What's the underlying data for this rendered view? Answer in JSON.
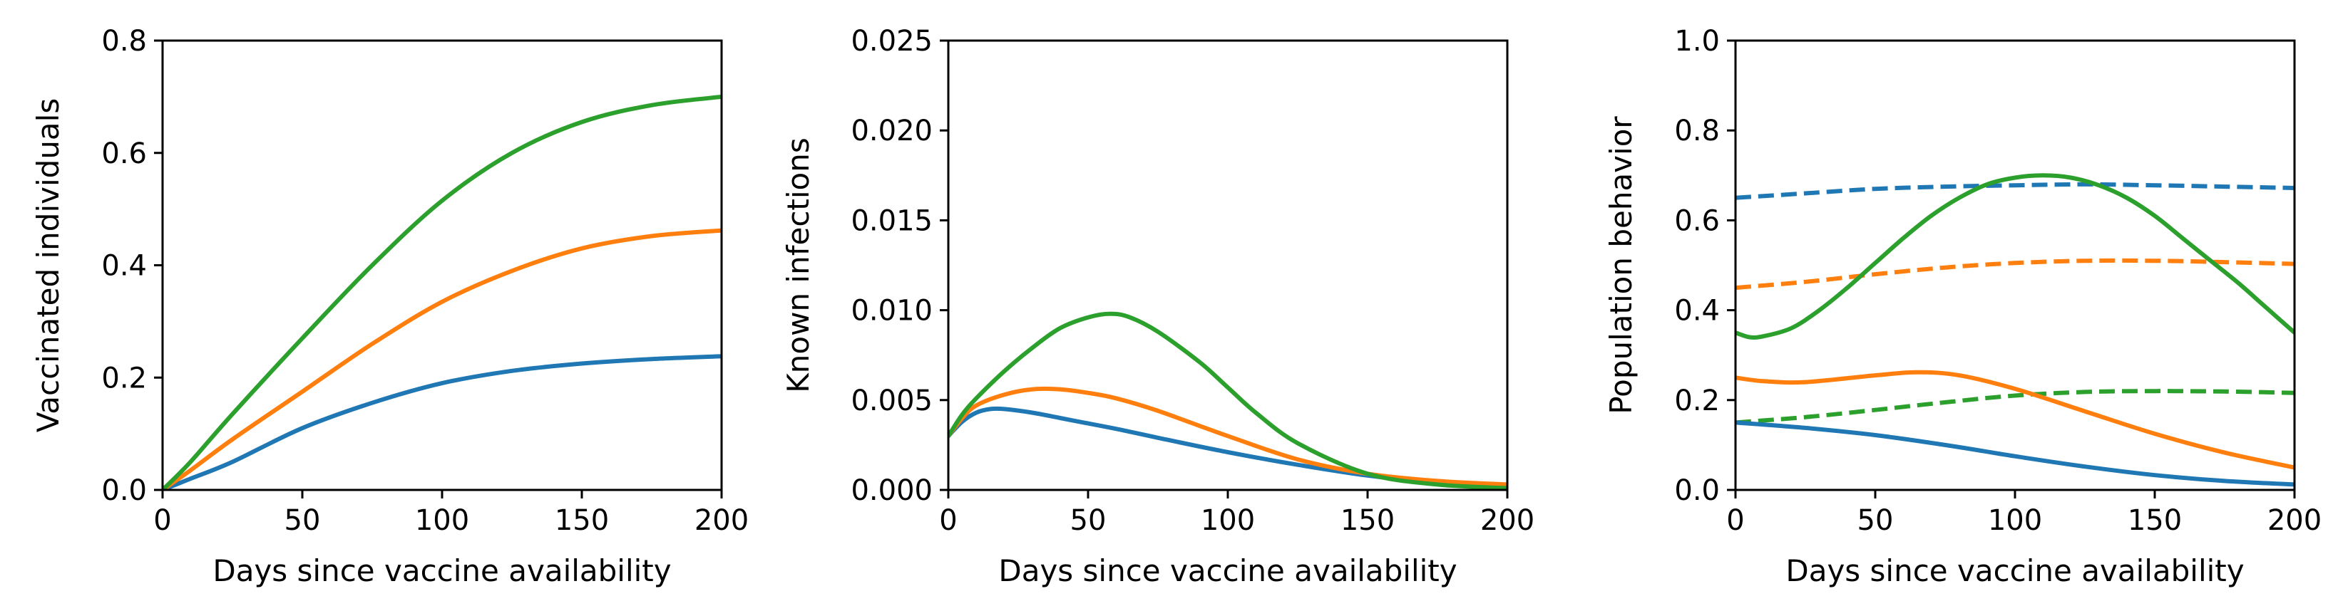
{
  "colors": {
    "blue": "#1f77b4",
    "orange": "#ff7f0e",
    "green": "#2ca02c",
    "axes": "#000000",
    "background": "#ffffff"
  },
  "chart_data": [
    {
      "type": "line",
      "xlabel": "Days since vaccine availability",
      "ylabel": "Vaccinated individuals",
      "xlim": [
        0,
        200
      ],
      "ylim": [
        0,
        0.8
      ],
      "xticks": [
        0,
        50,
        100,
        150,
        200
      ],
      "xtick_labels": [
        "0",
        "50",
        "100",
        "150",
        "200"
      ],
      "yticks": [
        0,
        0.2,
        0.4,
        0.6,
        0.8
      ],
      "ytick_labels": [
        "0.0",
        "0.2",
        "0.4",
        "0.6",
        "0.8"
      ],
      "grid": false,
      "series": [
        {
          "color": "#1f77b4",
          "style": "solid",
          "x": [
            0,
            10,
            25,
            50,
            75,
            100,
            125,
            150,
            175,
            200
          ],
          "y": [
            0.0,
            0.02,
            0.05,
            0.11,
            0.155,
            0.19,
            0.212,
            0.225,
            0.233,
            0.238
          ]
        },
        {
          "color": "#ff7f0e",
          "style": "solid",
          "x": [
            0,
            10,
            25,
            50,
            75,
            100,
            125,
            150,
            175,
            200
          ],
          "y": [
            0.0,
            0.035,
            0.09,
            0.175,
            0.26,
            0.335,
            0.39,
            0.43,
            0.452,
            0.462
          ]
        },
        {
          "color": "#2ca02c",
          "style": "solid",
          "x": [
            0,
            10,
            25,
            50,
            75,
            100,
            125,
            150,
            175,
            200
          ],
          "y": [
            0.0,
            0.05,
            0.135,
            0.27,
            0.4,
            0.515,
            0.6,
            0.655,
            0.685,
            0.7
          ]
        }
      ]
    },
    {
      "type": "line",
      "xlabel": "Days since vaccine availability",
      "ylabel": "Known infections",
      "xlim": [
        0,
        200
      ],
      "ylim": [
        0,
        0.025
      ],
      "xticks": [
        0,
        50,
        100,
        150,
        200
      ],
      "xtick_labels": [
        "0",
        "50",
        "100",
        "150",
        "200"
      ],
      "yticks": [
        0,
        0.005,
        0.01,
        0.015,
        0.02,
        0.025
      ],
      "ytick_labels": [
        "0.000",
        "0.005",
        "0.010",
        "0.015",
        "0.020",
        "0.025"
      ],
      "grid": false,
      "series": [
        {
          "color": "#1f77b4",
          "style": "solid",
          "x": [
            0,
            5,
            10,
            15,
            20,
            30,
            40,
            50,
            60,
            75,
            100,
            125,
            150,
            175,
            200
          ],
          "y": [
            0.003,
            0.0038,
            0.0043,
            0.0045,
            0.0045,
            0.0043,
            0.004,
            0.0037,
            0.0034,
            0.0029,
            0.0021,
            0.0014,
            0.0008,
            0.0004,
            0.0002
          ]
        },
        {
          "color": "#ff7f0e",
          "style": "solid",
          "x": [
            0,
            5,
            10,
            20,
            30,
            40,
            50,
            60,
            75,
            100,
            125,
            150,
            175,
            200
          ],
          "y": [
            0.003,
            0.004,
            0.0047,
            0.0053,
            0.0056,
            0.0056,
            0.0054,
            0.0051,
            0.0044,
            0.003,
            0.0017,
            0.0009,
            0.0005,
            0.0003
          ]
        },
        {
          "color": "#2ca02c",
          "style": "solid",
          "x": [
            0,
            5,
            10,
            20,
            30,
            40,
            50,
            58,
            65,
            75,
            90,
            100,
            110,
            125,
            150,
            175,
            200
          ],
          "y": [
            0.003,
            0.0042,
            0.0051,
            0.0066,
            0.0079,
            0.009,
            0.0096,
            0.0098,
            0.0096,
            0.0088,
            0.0071,
            0.0057,
            0.0043,
            0.0026,
            0.0009,
            0.0003,
            0.0001
          ]
        }
      ]
    },
    {
      "type": "line",
      "xlabel": "Days since vaccine availability",
      "ylabel": "Population behavior",
      "xlim": [
        0,
        200
      ],
      "ylim": [
        0,
        1.0
      ],
      "xticks": [
        0,
        50,
        100,
        150,
        200
      ],
      "xtick_labels": [
        "0",
        "50",
        "100",
        "150",
        "200"
      ],
      "yticks": [
        0,
        0.2,
        0.4,
        0.6,
        0.8,
        1.0
      ],
      "ytick_labels": [
        "0.0",
        "0.2",
        "0.4",
        "0.6",
        "0.8",
        "1.0"
      ],
      "grid": false,
      "series": [
        {
          "color": "#1f77b4",
          "style": "dashed",
          "x": [
            0,
            25,
            50,
            75,
            100,
            125,
            150,
            175,
            200
          ],
          "y": [
            0.65,
            0.66,
            0.67,
            0.675,
            0.678,
            0.68,
            0.678,
            0.675,
            0.672
          ]
        },
        {
          "color": "#ff7f0e",
          "style": "dashed",
          "x": [
            0,
            25,
            50,
            75,
            100,
            125,
            150,
            175,
            200
          ],
          "y": [
            0.45,
            0.463,
            0.48,
            0.495,
            0.505,
            0.51,
            0.51,
            0.507,
            0.503
          ]
        },
        {
          "color": "#2ca02c",
          "style": "dashed",
          "x": [
            0,
            25,
            50,
            75,
            100,
            125,
            150,
            175,
            200
          ],
          "y": [
            0.15,
            0.162,
            0.178,
            0.195,
            0.21,
            0.218,
            0.22,
            0.219,
            0.216
          ]
        },
        {
          "color": "#1f77b4",
          "style": "solid",
          "x": [
            0,
            25,
            50,
            75,
            100,
            125,
            150,
            175,
            200
          ],
          "y": [
            0.15,
            0.138,
            0.122,
            0.1,
            0.075,
            0.052,
            0.033,
            0.02,
            0.012
          ]
        },
        {
          "color": "#ff7f0e",
          "style": "solid",
          "x": [
            0,
            10,
            25,
            50,
            65,
            80,
            100,
            125,
            150,
            175,
            200
          ],
          "y": [
            0.25,
            0.242,
            0.24,
            0.255,
            0.262,
            0.255,
            0.225,
            0.175,
            0.125,
            0.083,
            0.05
          ]
        },
        {
          "color": "#2ca02c",
          "style": "solid",
          "x": [
            0,
            5,
            10,
            20,
            30,
            40,
            50,
            60,
            70,
            80,
            90,
            100,
            110,
            120,
            130,
            140,
            150,
            160,
            170,
            180,
            190,
            200
          ],
          "y": [
            0.35,
            0.34,
            0.342,
            0.36,
            0.4,
            0.45,
            0.505,
            0.56,
            0.61,
            0.65,
            0.68,
            0.695,
            0.7,
            0.695,
            0.678,
            0.65,
            0.61,
            0.56,
            0.51,
            0.46,
            0.405,
            0.35
          ]
        }
      ]
    }
  ]
}
